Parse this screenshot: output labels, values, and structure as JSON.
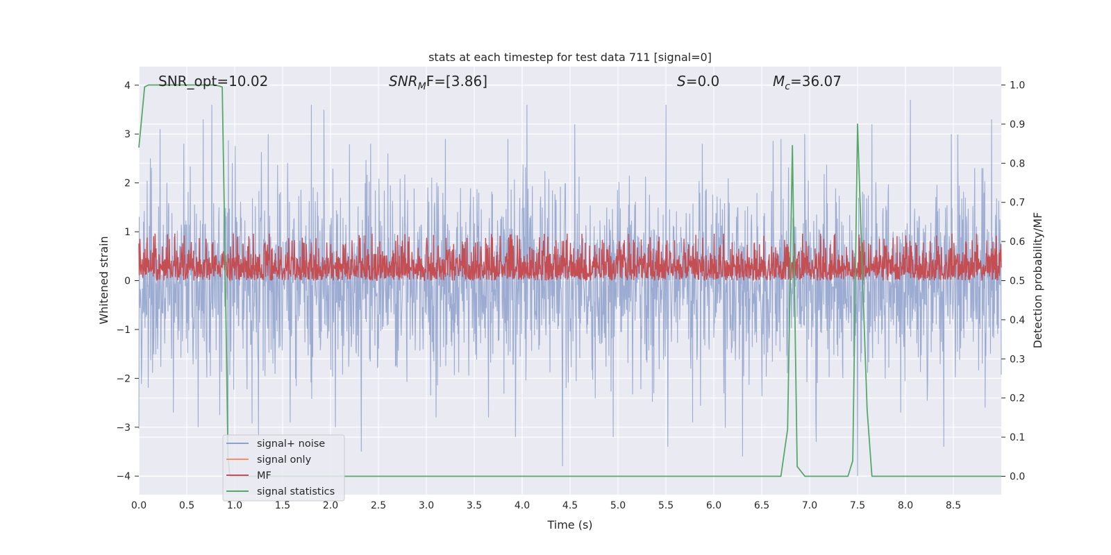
{
  "chart_data": {
    "type": "line",
    "title": "stats at each timestep for test data 711 [signal=0]",
    "xlabel": "Time (s)",
    "ylabel": "Whitened strain",
    "y2label": "Detection probability/MF",
    "xlim": [
      0,
      9.0
    ],
    "ylim": [
      -4.38,
      4.38
    ],
    "y2lim": [
      -0.047,
      1.047
    ],
    "xticks": [
      "0.0",
      "0.5",
      "1.0",
      "1.5",
      "2.0",
      "2.5",
      "3.0",
      "3.5",
      "4.0",
      "4.5",
      "5.0",
      "5.5",
      "6.0",
      "6.5",
      "7.0",
      "7.5",
      "8.0",
      "8.5"
    ],
    "yticks": [
      "4",
      "3",
      "2",
      "1",
      "0",
      "−1",
      "−2",
      "−3",
      "−4"
    ],
    "y2ticks": [
      "1.0",
      "0.9",
      "0.8",
      "0.7",
      "0.6",
      "0.5",
      "0.4",
      "0.3",
      "0.2",
      "0.1",
      "0.0"
    ],
    "grid": true,
    "legend_position": "lower-left",
    "annotations": [
      {
        "base": "SNR_opt=10.02"
      },
      {
        "base": "SNR",
        "sub": "M",
        "tail": "F=[3.86]"
      },
      {
        "base": "S",
        "tail": "=0.0"
      },
      {
        "base": "M",
        "sub": "c",
        "tail": "=36.07"
      }
    ],
    "series": [
      {
        "name": "signal+ noise",
        "color": "#8da0cb",
        "axis": "left",
        "kind": "whitened noise trace, |y| envelope up to about 3.6",
        "envelope_positive_peaks": [
          [
            0.12,
            2.5
          ],
          [
            0.22,
            3.1
          ],
          [
            0.47,
            2.8
          ],
          [
            0.67,
            3.3
          ],
          [
            0.76,
            3.6
          ],
          [
            1.35,
            3.0
          ],
          [
            1.8,
            3.6
          ],
          [
            1.93,
            3.5
          ],
          [
            2.42,
            2.8
          ],
          [
            2.6,
            2.6
          ],
          [
            3.2,
            2.9
          ],
          [
            3.85,
            2.9
          ],
          [
            4.05,
            3.6
          ],
          [
            4.55,
            3.2
          ],
          [
            5.5,
            3.6
          ],
          [
            5.88,
            2.8
          ],
          [
            6.7,
            2.9
          ],
          [
            6.95,
            3.0
          ],
          [
            7.65,
            3.2
          ],
          [
            8.05,
            3.7
          ],
          [
            8.48,
            3.0
          ],
          [
            8.9,
            3.3
          ]
        ],
        "envelope_negative_peaks": [
          [
            0.36,
            -2.7
          ],
          [
            0.62,
            -3.0
          ],
          [
            0.93,
            -3.2
          ],
          [
            1.25,
            -3.2
          ],
          [
            1.58,
            -2.9
          ],
          [
            2.05,
            -3.0
          ],
          [
            2.32,
            -3.5
          ],
          [
            3.1,
            -2.8
          ],
          [
            3.65,
            -2.8
          ],
          [
            3.93,
            -3.2
          ],
          [
            4.42,
            -3.8
          ],
          [
            4.95,
            -3.2
          ],
          [
            5.52,
            -3.4
          ],
          [
            5.78,
            -2.9
          ],
          [
            6.3,
            -3.6
          ],
          [
            7.07,
            -3.3
          ],
          [
            7.5,
            -4.0
          ],
          [
            7.95,
            -2.7
          ],
          [
            8.4,
            -3.4
          ],
          [
            8.83,
            -2.6
          ]
        ]
      },
      {
        "name": "signal only",
        "color": "#fc8d62",
        "axis": "left",
        "values_note": "no signal present (signal=0)"
      },
      {
        "name": "MF",
        "color": "#c44e52",
        "axis": "right",
        "kind": "matched-filter trace between 0.5 and about 0.62",
        "baseline": 0.5,
        "typical_max": 0.58,
        "peak_max": 0.62
      },
      {
        "name": "signal statistics",
        "color": "#55a868",
        "axis": "right",
        "x": [
          0.0,
          0.06,
          0.1,
          0.15,
          0.2,
          0.3,
          0.4,
          0.5,
          0.6,
          0.7,
          0.8,
          0.87,
          0.9,
          0.93,
          0.95,
          1.0,
          2.0,
          3.0,
          4.0,
          5.0,
          6.0,
          6.7,
          6.77,
          6.82,
          6.87,
          6.95,
          7.0,
          7.2,
          7.4,
          7.45,
          7.5,
          7.55,
          7.6,
          7.65,
          7.7,
          8.0,
          8.5,
          9.0
        ],
        "y": [
          0.84,
          0.995,
          1.0,
          1.0,
          1.0,
          1.0,
          1.0,
          1.0,
          1.0,
          1.0,
          1.0,
          0.995,
          0.55,
          0.05,
          0.0,
          0.0,
          0.0,
          0.0,
          0.0,
          0.0,
          0.0,
          0.0,
          0.12,
          0.845,
          0.025,
          0.0,
          0.0,
          0.0,
          0.0,
          0.04,
          0.9,
          0.52,
          0.17,
          0.0,
          0.0,
          0.0,
          0.0,
          0.0
        ]
      }
    ]
  }
}
